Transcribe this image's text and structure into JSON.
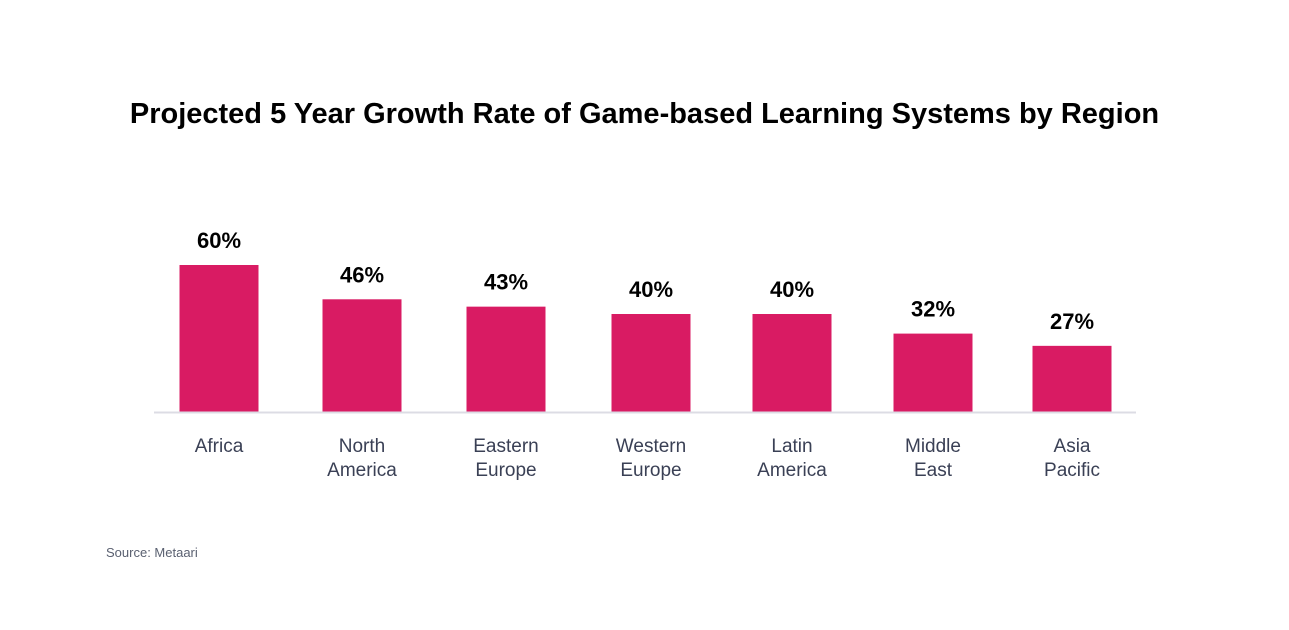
{
  "chart_data": {
    "type": "bar",
    "title": "Projected 5 Year Growth Rate of Game-based Learning Systems by Region",
    "categories": [
      [
        "Africa"
      ],
      [
        "North",
        "America"
      ],
      [
        "Eastern",
        "Europe"
      ],
      [
        "Western",
        "Europe"
      ],
      [
        "Latin",
        "America"
      ],
      [
        "Middle",
        "East"
      ],
      [
        "Asia",
        "Pacific"
      ]
    ],
    "values": [
      60,
      46,
      43,
      40,
      40,
      32,
      27
    ],
    "data_labels": [
      "60%",
      "46%",
      "43%",
      "40%",
      "40%",
      "32%",
      "27%"
    ],
    "ylim": [
      0,
      60
    ],
    "grid": false,
    "bar_color": "#D91B63",
    "axis_color": "#DCDCE4"
  },
  "source": "Source: Metaari"
}
